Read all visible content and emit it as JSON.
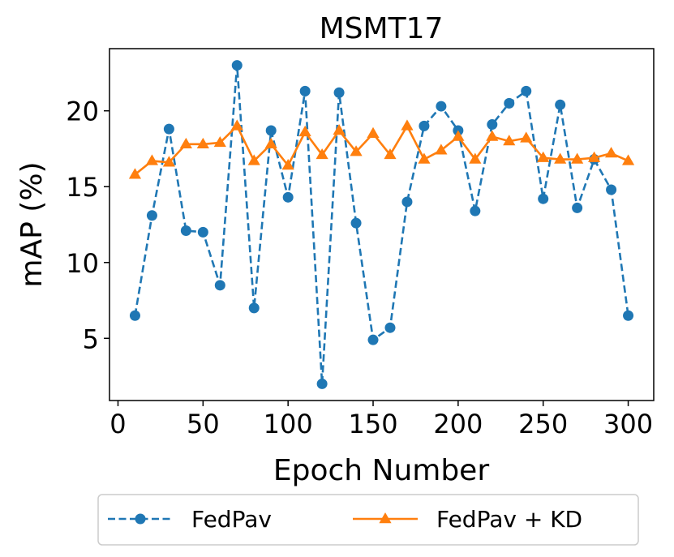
{
  "chart_data": {
    "type": "line",
    "title": "MSMT17",
    "xlabel": "Epoch Number",
    "ylabel": "mAP (%)",
    "xlim": [
      -5,
      315
    ],
    "ylim": [
      0.9,
      24.1
    ],
    "xticks": [
      0,
      50,
      100,
      150,
      200,
      250,
      300
    ],
    "yticks": [
      5,
      10,
      15,
      20
    ],
    "legend": "bottom-outside",
    "series": [
      {
        "name": "FedPav",
        "color": "#1f77b4",
        "linestyle": "dashed",
        "marker": "circle",
        "x": [
          10,
          20,
          30,
          40,
          50,
          60,
          70,
          80,
          90,
          100,
          110,
          120,
          130,
          140,
          150,
          160,
          170,
          180,
          190,
          200,
          210,
          220,
          230,
          240,
          250,
          260,
          270,
          280,
          290,
          300
        ],
        "values": [
          6.5,
          13.1,
          18.8,
          12.1,
          12.0,
          8.5,
          23.0,
          7.0,
          18.7,
          14.3,
          21.3,
          2.0,
          21.2,
          12.6,
          4.9,
          5.7,
          14.0,
          19.0,
          20.3,
          18.7,
          13.4,
          19.1,
          20.5,
          21.3,
          14.2,
          20.4,
          13.6,
          16.8,
          14.8,
          6.5
        ]
      },
      {
        "name": "FedPav + KD",
        "color": "#ff7f0e",
        "linestyle": "solid",
        "marker": "triangle",
        "x": [
          10,
          20,
          30,
          40,
          50,
          60,
          70,
          80,
          90,
          100,
          110,
          120,
          130,
          140,
          150,
          160,
          170,
          180,
          190,
          200,
          210,
          220,
          230,
          240,
          250,
          260,
          270,
          280,
          290,
          300
        ],
        "values": [
          15.8,
          16.7,
          16.6,
          17.8,
          17.8,
          17.9,
          19.0,
          16.7,
          17.8,
          16.4,
          18.6,
          17.1,
          18.7,
          17.3,
          18.5,
          17.1,
          19.0,
          16.8,
          17.4,
          18.3,
          16.8,
          18.3,
          18.0,
          18.2,
          16.9,
          16.8,
          16.8,
          16.9,
          17.2,
          16.7
        ]
      }
    ]
  }
}
